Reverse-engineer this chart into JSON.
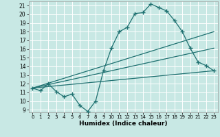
{
  "xlabel": "Humidex (Indice chaleur)",
  "xlim": [
    -0.5,
    23.5
  ],
  "ylim": [
    8.7,
    21.5
  ],
  "yticks": [
    9,
    10,
    11,
    12,
    13,
    14,
    15,
    16,
    17,
    18,
    19,
    20,
    21
  ],
  "xticks": [
    0,
    1,
    2,
    3,
    4,
    5,
    6,
    7,
    8,
    9,
    10,
    11,
    12,
    13,
    14,
    15,
    16,
    17,
    18,
    19,
    20,
    21,
    22,
    23
  ],
  "bg_color": "#c8e8e4",
  "line_color": "#1e7070",
  "grid_color": "#ffffff",
  "curve1_x": [
    0,
    1,
    2,
    3,
    4,
    5,
    6,
    7,
    8,
    9,
    10,
    11,
    12,
    13,
    14,
    15,
    16,
    17,
    18,
    19,
    20,
    21,
    22,
    23
  ],
  "curve1_y": [
    11.5,
    11.2,
    12.0,
    11.1,
    10.5,
    10.8,
    9.5,
    8.8,
    10.0,
    13.5,
    16.1,
    18.0,
    18.5,
    20.1,
    20.2,
    21.2,
    20.8,
    20.4,
    19.3,
    18.0,
    16.1,
    14.5,
    14.1,
    13.5
  ],
  "line2_x": [
    0,
    23
  ],
  "line2_y": [
    11.5,
    18.0
  ],
  "line3_x": [
    0,
    23
  ],
  "line3_y": [
    11.5,
    16.1
  ],
  "line4_x": [
    0,
    23
  ],
  "line4_y": [
    11.5,
    13.5
  ]
}
